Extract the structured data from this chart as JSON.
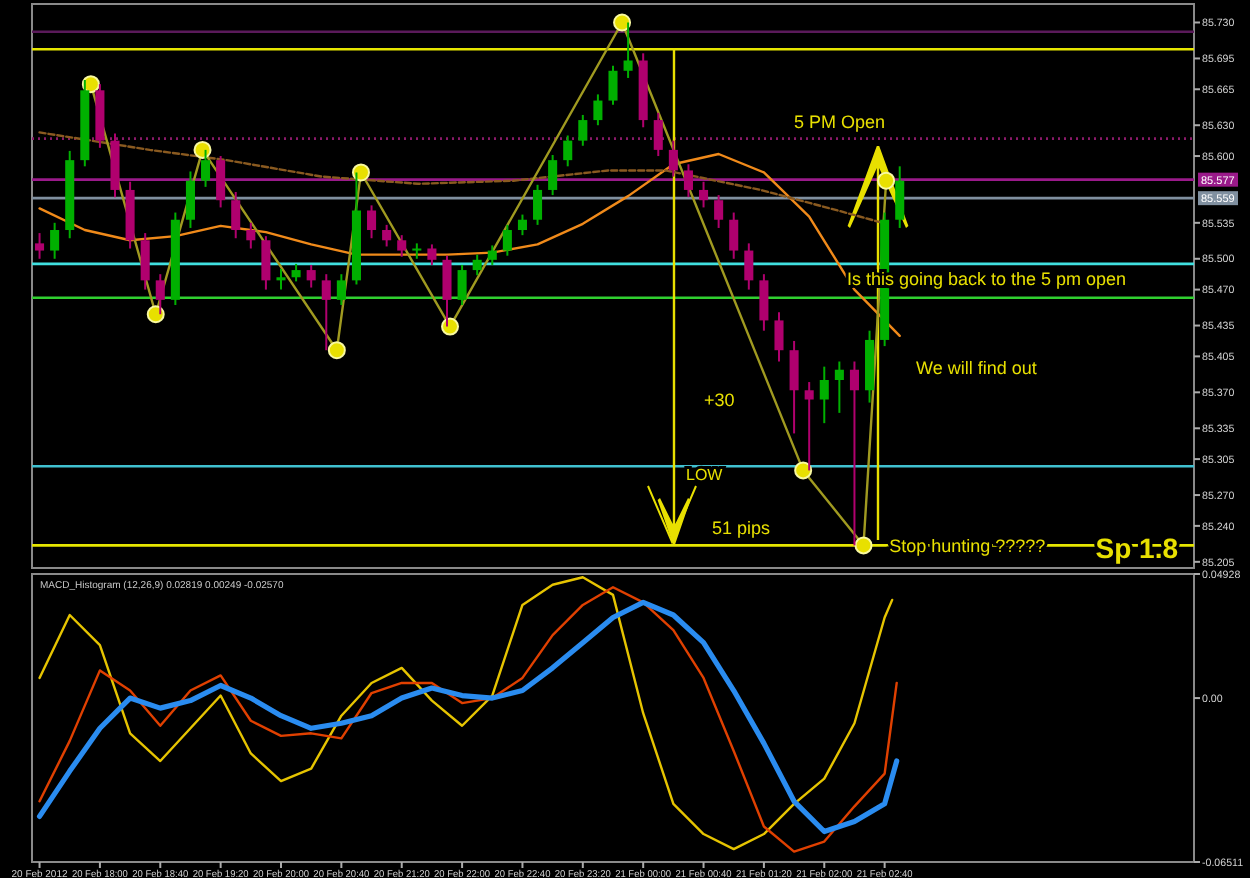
{
  "chart_data": [
    {
      "type": "candlestick",
      "xlim": [
        "2012-02-20T17:15",
        "2012-02-21T06:05"
      ],
      "ylim": [
        85.199,
        85.748
      ],
      "tick_labels": "y",
      "yticks": [
        {
          "value": 85.73,
          "label": "85.730"
        },
        85.695,
        85.665,
        {
          "value": 85.63,
          "label": "85.630"
        },
        {
          "value": 85.6,
          "label": "85.600"
        },
        85.535,
        {
          "value": 85.5,
          "label": "85.500"
        },
        {
          "value": 85.47,
          "label": "85.470"
        },
        85.435,
        85.405,
        {
          "value": 85.37,
          "label": "85.370"
        },
        85.335,
        85.305,
        {
          "value": 85.27,
          "label": "85.270"
        },
        {
          "value": 85.24,
          "label": "85.240"
        },
        85.205
      ],
      "x": [
        "2012-02-20T17:20",
        "2012-02-20T17:30",
        "2012-02-20T17:40",
        "2012-02-20T17:50",
        "2012-02-20T18:00",
        "2012-02-20T18:10",
        "2012-02-20T18:20",
        "2012-02-20T18:30",
        "2012-02-20T18:40",
        "2012-02-20T18:50",
        "2012-02-20T19:00",
        "2012-02-20T19:10",
        "2012-02-20T19:20",
        "2012-02-20T19:30",
        "2012-02-20T19:40",
        "2012-02-20T19:50",
        "2012-02-20T20:00",
        "2012-02-20T20:10",
        "2012-02-20T20:20",
        "2012-02-20T20:30",
        "2012-02-20T20:40",
        "2012-02-20T20:50",
        "2012-02-20T21:00",
        "2012-02-20T21:10",
        "2012-02-20T21:20",
        "2012-02-20T21:30",
        "2012-02-20T21:40",
        "2012-02-20T21:50",
        "2012-02-20T22:00",
        "2012-02-20T22:10",
        "2012-02-20T22:20",
        "2012-02-20T22:30",
        "2012-02-20T22:40",
        "2012-02-20T22:50",
        "2012-02-20T23:00",
        "2012-02-20T23:10",
        "2012-02-20T23:20",
        "2012-02-20T23:30",
        "2012-02-20T23:40",
        "2012-02-20T23:50",
        "2012-02-21T00:00",
        "2012-02-21T00:10",
        "2012-02-21T00:20",
        "2012-02-21T00:30",
        "2012-02-21T00:40",
        "2012-02-21T00:50",
        "2012-02-21T01:00",
        "2012-02-21T01:10",
        "2012-02-21T01:20",
        "2012-02-21T01:30",
        "2012-02-21T01:40",
        "2012-02-21T01:50",
        "2012-02-21T02:00",
        "2012-02-21T02:10",
        "2012-02-21T02:20",
        "2012-02-21T02:30",
        "2012-02-21T02:40",
        "2012-02-21T02:50"
      ],
      "ohlc": [
        [
          85.515,
          85.525,
          85.5,
          85.508
        ],
        [
          85.508,
          85.535,
          85.5,
          85.528
        ],
        [
          85.528,
          85.605,
          85.52,
          85.596
        ],
        [
          85.596,
          85.674,
          85.59,
          85.664
        ],
        [
          85.664,
          85.67,
          85.608,
          85.615
        ],
        [
          85.615,
          85.622,
          85.56,
          85.567
        ],
        [
          85.567,
          85.575,
          85.51,
          85.518
        ],
        [
          85.518,
          85.525,
          85.47,
          85.479
        ],
        [
          85.479,
          85.485,
          85.446,
          85.46
        ],
        [
          85.46,
          85.545,
          85.455,
          85.538
        ],
        [
          85.538,
          85.585,
          85.53,
          85.576
        ],
        [
          85.576,
          85.606,
          85.57,
          85.596
        ],
        [
          85.596,
          85.6,
          85.55,
          85.557
        ],
        [
          85.557,
          85.565,
          85.52,
          85.528
        ],
        [
          85.528,
          85.535,
          85.51,
          85.518
        ],
        [
          85.518,
          85.522,
          85.47,
          85.479
        ],
        [
          85.479,
          85.49,
          85.47,
          85.482
        ],
        [
          85.482,
          85.495,
          85.478,
          85.489
        ],
        [
          85.489,
          85.494,
          85.472,
          85.479
        ],
        [
          85.479,
          85.485,
          85.411,
          85.46
        ],
        [
          85.46,
          85.485,
          85.455,
          85.479
        ],
        [
          85.479,
          85.584,
          85.475,
          85.547
        ],
        [
          85.547,
          85.552,
          85.52,
          85.528
        ],
        [
          85.528,
          85.533,
          85.512,
          85.518
        ],
        [
          85.518,
          85.523,
          85.502,
          85.508
        ],
        [
          85.508,
          85.515,
          85.5,
          85.51
        ],
        [
          85.51,
          85.514,
          85.494,
          85.499
        ],
        [
          85.499,
          85.503,
          85.434,
          85.46
        ],
        [
          85.46,
          85.494,
          85.455,
          85.489
        ],
        [
          85.489,
          85.504,
          85.484,
          85.499
        ],
        [
          85.499,
          85.513,
          85.494,
          85.508
        ],
        [
          85.508,
          85.533,
          85.503,
          85.528
        ],
        [
          85.528,
          85.543,
          85.523,
          85.538
        ],
        [
          85.538,
          85.572,
          85.533,
          85.567
        ],
        [
          85.567,
          85.601,
          85.562,
          85.596
        ],
        [
          85.596,
          85.62,
          85.59,
          85.615
        ],
        [
          85.615,
          85.64,
          85.61,
          85.635
        ],
        [
          85.635,
          85.66,
          85.63,
          85.654
        ],
        [
          85.654,
          85.688,
          85.65,
          85.683
        ],
        [
          85.683,
          85.73,
          85.676,
          85.693
        ],
        [
          85.693,
          85.7,
          85.628,
          85.635
        ],
        [
          85.635,
          85.642,
          85.6,
          85.606
        ],
        [
          85.606,
          85.615,
          85.58,
          85.586
        ],
        [
          85.586,
          85.592,
          85.56,
          85.567
        ],
        [
          85.567,
          85.575,
          85.55,
          85.557
        ],
        [
          85.557,
          85.562,
          85.53,
          85.538
        ],
        [
          85.538,
          85.545,
          85.5,
          85.508
        ],
        [
          85.508,
          85.515,
          85.47,
          85.479
        ],
        [
          85.479,
          85.485,
          85.43,
          85.44
        ],
        [
          85.44,
          85.448,
          85.4,
          85.411
        ],
        [
          85.411,
          85.42,
          85.33,
          85.372
        ],
        [
          85.372,
          85.38,
          85.294,
          85.363
        ],
        [
          85.363,
          85.395,
          85.34,
          85.382
        ],
        [
          85.382,
          85.4,
          85.35,
          85.392
        ],
        [
          85.392,
          85.4,
          85.221,
          85.372
        ],
        [
          85.372,
          85.43,
          85.36,
          85.421
        ],
        [
          85.421,
          85.545,
          85.415,
          85.538
        ],
        [
          85.538,
          85.59,
          85.53,
          85.576
        ]
      ],
      "colors": [
        "#b0006e",
        "#00b000",
        "#00b000",
        "#00b000",
        "#b0006e",
        "#b0006e",
        "#b0006e",
        "#b0006e",
        "#b0006e",
        "#00b000",
        "#00b000",
        "#00b000",
        "#b0006e",
        "#b0006e",
        "#b0006e",
        "#b0006e",
        "#00b000",
        "#00b000",
        "#b0006e",
        "#b0006e",
        "#00b000",
        "#00b000",
        "#b0006e",
        "#b0006e",
        "#b0006e",
        "#00b000",
        "#b0006e",
        "#b0006e",
        "#00b000",
        "#00b000",
        "#00b000",
        "#00b000",
        "#00b000",
        "#00b000",
        "#00b000",
        "#00b000",
        "#00b000",
        "#00b000",
        "#00b000",
        "#00b000",
        "#b0006e",
        "#b0006e",
        "#b0006e",
        "#b0006e",
        "#b0006e",
        "#b0006e",
        "#b0006e",
        "#b0006e",
        "#b0006e",
        "#b0006e",
        "#b0006e",
        "#b0006e",
        "#00b000",
        "#00b000",
        "#b0006e",
        "#00b000",
        "#00b000",
        "#00b000"
      ],
      "series": [
        {
          "type": "line",
          "color": "#f08a1a",
          "x": [
            "2012-02-20T17:20",
            "2012-02-20T17:50",
            "2012-02-20T18:20",
            "2012-02-20T18:50",
            "2012-02-20T19:20",
            "2012-02-20T19:50",
            "2012-02-20T20:20",
            "2012-02-20T20:50",
            "2012-02-20T21:20",
            "2012-02-20T21:50",
            "2012-02-20T22:20",
            "2012-02-20T22:50",
            "2012-02-20T23:20",
            "2012-02-20T23:50",
            "2012-02-21T00:20",
            "2012-02-21T00:50",
            "2012-02-21T01:20",
            "2012-02-21T01:50",
            "2012-02-21T02:20",
            "2012-02-21T02:50"
          ],
          "values": [
            85.549,
            85.528,
            85.518,
            85.522,
            85.532,
            85.526,
            85.514,
            85.504,
            85.504,
            85.504,
            85.506,
            85.514,
            85.534,
            85.561,
            85.592,
            85.602,
            85.584,
            85.541,
            85.47,
            85.425
          ]
        },
        {
          "type": "line",
          "color": "#8a5a20",
          "line_style": "dashed",
          "x": [
            "2012-02-20T17:20",
            "2012-02-20T18:33",
            "2012-02-20T19:24",
            "2012-02-20T20:27",
            "2012-02-20T21:31",
            "2012-02-20T22:34",
            "2012-02-20T23:37",
            "2012-02-21T00:15",
            "2012-02-21T01:18",
            "2012-02-21T02:09",
            "2012-02-21T02:41"
          ],
          "values": [
            85.623,
            85.606,
            85.596,
            85.58,
            85.573,
            85.576,
            85.586,
            85.586,
            85.567,
            85.547,
            85.534
          ]
        },
        {
          "type": "line",
          "color": "#a09a20",
          "marker": "circle",
          "x": [
            "2012-02-20T17:54",
            "2012-02-20T18:37",
            "2012-02-20T19:08",
            "2012-02-20T20:37",
            "2012-02-20T20:53",
            "2012-02-20T21:52",
            "2012-02-20T23:46",
            "2012-02-21T01:46",
            "2012-02-21T02:26",
            "2012-02-21T02:41"
          ],
          "values": [
            85.67,
            85.446,
            85.606,
            85.411,
            85.584,
            85.434,
            85.73,
            85.294,
            85.221,
            85.576
          ]
        }
      ],
      "ref_lines": [
        {
          "axis": "y",
          "value": 85.721,
          "color": "#5a1a5a"
        },
        {
          "axis": "y",
          "value": 85.704,
          "color": "#e6e600"
        },
        {
          "axis": "y",
          "value": 85.617,
          "color": "#8a1a6a",
          "line_style": "dotted"
        },
        {
          "axis": "y",
          "value": 85.577,
          "label": "85.577",
          "color": "#9a1a8a"
        },
        {
          "axis": "y",
          "value": 85.559,
          "label": "85.559",
          "color": "#8090a0"
        },
        {
          "axis": "y",
          "value": 85.495,
          "color": "#40e0e0"
        },
        {
          "axis": "y",
          "value": 85.462,
          "color": "#30d030"
        },
        {
          "axis": "y",
          "value": 85.298,
          "color": "#40c0d0"
        },
        {
          "axis": "y",
          "value": 85.221,
          "color": "#e6e600"
        }
      ],
      "annotations": [
        "5 PM Open",
        "LOW",
        "+30",
        "51 pips",
        {
          "text": "Stop hunting ?????",
          "x": "2012-02-21T02:43",
          "y": 85.221
        },
        {
          "text": "Is this going back to the 5 pm open",
          "x": "2012-02-21T02:15",
          "y": 85.481
        },
        "We will find out",
        "Sp 1.8"
      ]
    },
    {
      "type": "line",
      "title": "MACD_Histogram (12,26,9) 0.02819 0.00249 -0.02570",
      "xlim": [
        "2012-02-20T17:15",
        "2012-02-21T06:05"
      ],
      "ylim": [
        -0.06511,
        0.04928
      ],
      "yticks": [
        0.04928,
        {
          "value": 0,
          "label": "0.00"
        },
        -0.06511
      ],
      "xticks": [
        {
          "value": "2012-02-20T17:20",
          "label": "20 Feb 2012"
        },
        {
          "value": "2012-02-20T18:00",
          "label": "20 Feb 18:00"
        },
        {
          "value": "2012-02-20T18:40",
          "label": "20 Feb 18:40"
        },
        {
          "value": "2012-02-20T19:20",
          "label": "20 Feb 19:20"
        },
        {
          "value": "2012-02-20T20:00",
          "label": "20 Feb 20:00"
        },
        {
          "value": "2012-02-20T20:40",
          "label": "20 Feb 20:40"
        },
        {
          "value": "2012-02-20T21:20",
          "label": "20 Feb 21:20"
        },
        {
          "value": "2012-02-20T22:00",
          "label": "20 Feb 22:00"
        },
        {
          "value": "2012-02-20T22:40",
          "label": "20 Feb 22:40"
        },
        {
          "value": "2012-02-20T23:20",
          "label": "20 Feb 23:20"
        },
        {
          "value": "2012-02-21T00:00",
          "label": "21 Feb 00:00"
        },
        {
          "value": "2012-02-21T00:40",
          "label": "21 Feb 00:40"
        },
        {
          "value": "2012-02-21T01:20",
          "label": "21 Feb 01:20"
        },
        {
          "value": "2012-02-21T02:00",
          "label": "21 Feb 02:00"
        },
        {
          "value": "2012-02-21T02:40",
          "label": "21 Feb 02:40"
        }
      ],
      "series": [
        {
          "color": "#e6c400",
          "x": [
            "2012-02-20T17:20",
            "2012-02-20T17:40",
            "2012-02-20T18:00",
            "2012-02-20T18:20",
            "2012-02-20T18:40",
            "2012-02-20T19:00",
            "2012-02-20T19:20",
            "2012-02-20T19:40",
            "2012-02-20T20:00",
            "2012-02-20T20:20",
            "2012-02-20T20:40",
            "2012-02-20T21:00",
            "2012-02-20T21:20",
            "2012-02-20T21:40",
            "2012-02-20T22:00",
            "2012-02-20T22:20",
            "2012-02-20T22:40",
            "2012-02-20T23:00",
            "2012-02-20T23:20",
            "2012-02-20T23:40",
            "2012-02-21T00:00",
            "2012-02-21T00:20",
            "2012-02-21T00:40",
            "2012-02-21T01:00",
            "2012-02-21T01:20",
            "2012-02-21T01:40",
            "2012-02-21T02:00",
            "2012-02-21T02:20",
            "2012-02-21T02:40",
            "2012-02-21T02:45"
          ],
          "values": [
            0.008,
            0.033,
            0.021,
            -0.014,
            -0.025,
            -0.012,
            0.001,
            -0.022,
            -0.033,
            -0.028,
            -0.007,
            0.006,
            0.012,
            -0.001,
            -0.011,
            0.001,
            0.037,
            0.045,
            0.048,
            0.041,
            -0.006,
            -0.042,
            -0.054,
            -0.06,
            -0.054,
            -0.042,
            -0.032,
            -0.01,
            0.032,
            0.039
          ]
        },
        {
          "color": "#e04000",
          "x": [
            "2012-02-20T17:20",
            "2012-02-20T17:40",
            "2012-02-20T18:00",
            "2012-02-20T18:20",
            "2012-02-20T18:40",
            "2012-02-20T19:00",
            "2012-02-20T19:20",
            "2012-02-20T19:40",
            "2012-02-20T20:00",
            "2012-02-20T20:20",
            "2012-02-20T20:40",
            "2012-02-20T21:00",
            "2012-02-20T21:20",
            "2012-02-20T21:40",
            "2012-02-20T22:00",
            "2012-02-20T22:20",
            "2012-02-20T22:40",
            "2012-02-20T23:00",
            "2012-02-20T23:20",
            "2012-02-20T23:40",
            "2012-02-21T00:00",
            "2012-02-21T00:20",
            "2012-02-21T00:40",
            "2012-02-21T01:00",
            "2012-02-21T01:20",
            "2012-02-21T01:40",
            "2012-02-21T02:00",
            "2012-02-21T02:20",
            "2012-02-21T02:40",
            "2012-02-21T02:48"
          ],
          "values": [
            -0.041,
            -0.017,
            0.011,
            0.003,
            -0.011,
            0.003,
            0.009,
            -0.009,
            -0.015,
            -0.014,
            -0.016,
            0.002,
            0.006,
            0.006,
            -0.002,
            0.0,
            0.008,
            0.025,
            0.037,
            0.044,
            0.038,
            0.027,
            0.008,
            -0.021,
            -0.051,
            -0.061,
            -0.057,
            -0.043,
            -0.03,
            0.006
          ]
        },
        {
          "color": "#2a8cf0",
          "x": [
            "2012-02-20T17:20",
            "2012-02-20T17:40",
            "2012-02-20T18:00",
            "2012-02-20T18:20",
            "2012-02-20T18:40",
            "2012-02-20T19:00",
            "2012-02-20T19:20",
            "2012-02-20T19:40",
            "2012-02-20T20:00",
            "2012-02-20T20:20",
            "2012-02-20T20:40",
            "2012-02-20T21:00",
            "2012-02-20T21:20",
            "2012-02-20T21:40",
            "2012-02-20T22:00",
            "2012-02-20T22:20",
            "2012-02-20T22:40",
            "2012-02-20T23:00",
            "2012-02-20T23:20",
            "2012-02-20T23:40",
            "2012-02-21T00:00",
            "2012-02-21T00:20",
            "2012-02-21T00:40",
            "2012-02-21T01:00",
            "2012-02-21T01:20",
            "2012-02-21T01:40",
            "2012-02-21T02:00",
            "2012-02-21T02:20",
            "2012-02-21T02:40",
            "2012-02-21T02:48"
          ],
          "values": [
            -0.047,
            -0.029,
            -0.012,
            0.0,
            -0.004,
            -0.001,
            0.005,
            0.0,
            -0.007,
            -0.012,
            -0.01,
            -0.007,
            0.0,
            0.004,
            0.001,
            0.0,
            0.003,
            0.012,
            0.022,
            0.032,
            0.038,
            0.033,
            0.022,
            0.003,
            -0.018,
            -0.041,
            -0.053,
            -0.049,
            -0.042,
            -0.025
          ]
        }
      ]
    }
  ]
}
